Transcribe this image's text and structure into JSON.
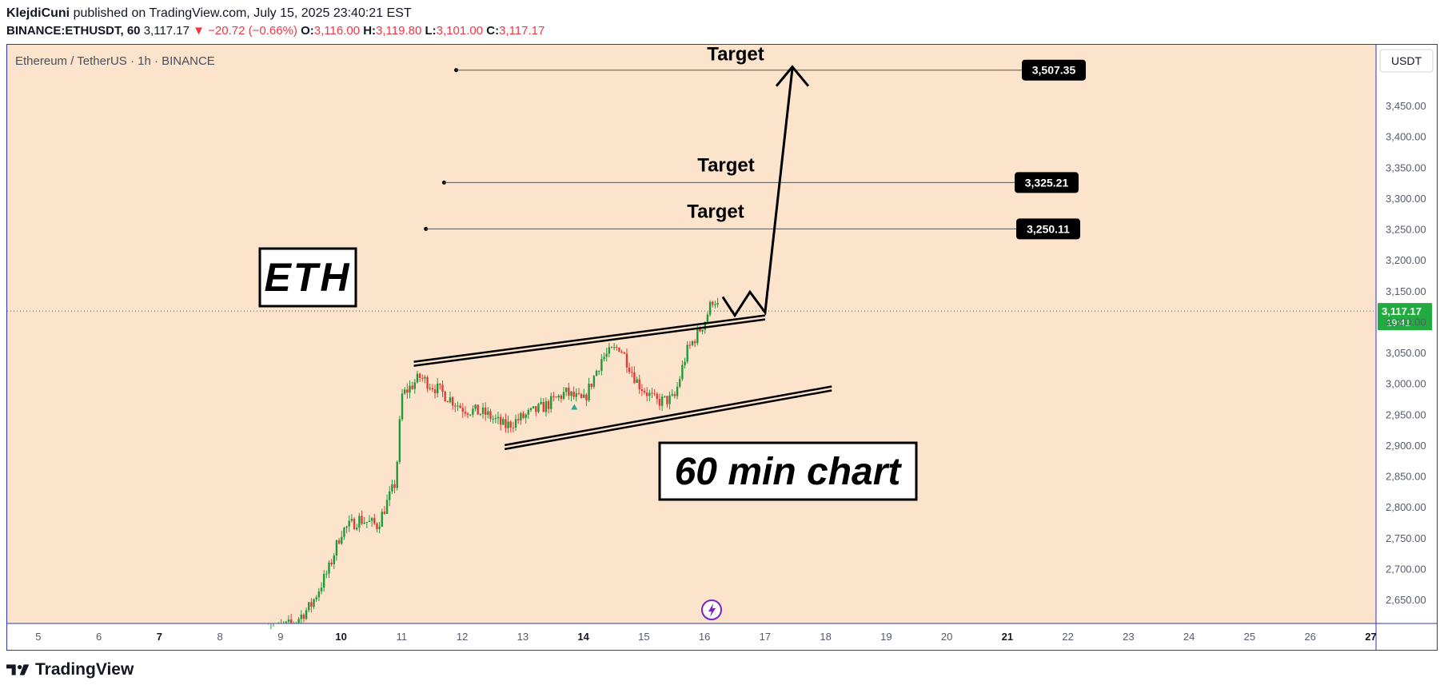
{
  "header": {
    "author": "KlejdiCuni",
    "published_text": "published on TradingView.com, July 15, 2025 23:40:21 EST",
    "symbol": "BINANCE:ETHUSDT, 60",
    "last": "3,117.17",
    "change": "▼ −20.72 (−0.66%)",
    "o_label": "O:",
    "o": "3,116.00",
    "h_label": "H:",
    "h": "3,119.80",
    "l_label": "L:",
    "l": "3,101.00",
    "c_label": "C:",
    "c": "3,117.17"
  },
  "pane": {
    "title": "Ethereum / TetherUS · 1h · BINANCE",
    "currency": "USDT",
    "background": "#fbe3cc",
    "border": "#2b35c8"
  },
  "annotations": {
    "eth_label": "ETH",
    "timeframe_label": "60 min chart",
    "target_text": "Target",
    "targets": [
      {
        "price": 3507.35,
        "label": "3,507.35",
        "text": "Target"
      },
      {
        "price": 3325.21,
        "label": "3,325.21",
        "text": "Target"
      },
      {
        "price": 3250.11,
        "label": "3,250.11",
        "text": "Target"
      }
    ],
    "last_price": {
      "label": "3,117.17",
      "countdown": "19:41",
      "color": "#22ab3f"
    }
  },
  "footer": {
    "brand": "TradingView"
  },
  "colors": {
    "up": "#26a69a",
    "up_body": "#1f9a3a",
    "down": "#e53935",
    "axis_text": "#555b6b"
  },
  "chart_data": {
    "type": "candlestick",
    "title": "Ethereum / TetherUS · 1h · BINANCE",
    "x_ticks": [
      "5",
      "6",
      "7",
      "8",
      "9",
      "10",
      "11",
      "12",
      "13",
      "14",
      "15",
      "16",
      "17",
      "18",
      "19",
      "20",
      "21",
      "22",
      "23",
      "24",
      "25",
      "26",
      "27"
    ],
    "x_ticks_bold": [
      "7",
      "10",
      "14",
      "21",
      "27"
    ],
    "y_ticks": [
      "3,450.00",
      "3,400.00",
      "3,350.00",
      "3,300.00",
      "3,250.00",
      "3,200.00",
      "3,150.00",
      "3,100.00",
      "3,050.00",
      "3,000.00",
      "2,950.00",
      "2,900.00",
      "2,850.00",
      "2,800.00",
      "2,750.00",
      "2,700.00",
      "2,650.00"
    ],
    "ylim": [
      2620,
      3520
    ],
    "xlim_days": [
      4.5,
      27.1
    ],
    "series_points": [
      {
        "day": 8.8,
        "price": 2600
      },
      {
        "day": 9.2,
        "price": 2610
      },
      {
        "day": 9.5,
        "price": 2640
      },
      {
        "day": 9.8,
        "price": 2700
      },
      {
        "day": 10.0,
        "price": 2760
      },
      {
        "day": 10.3,
        "price": 2780
      },
      {
        "day": 10.6,
        "price": 2770
      },
      {
        "day": 10.9,
        "price": 2840
      },
      {
        "day": 11.0,
        "price": 2980
      },
      {
        "day": 11.3,
        "price": 3010
      },
      {
        "day": 11.6,
        "price": 2990
      },
      {
        "day": 12.0,
        "price": 2960
      },
      {
        "day": 12.4,
        "price": 2950
      },
      {
        "day": 12.7,
        "price": 2930
      },
      {
        "day": 13.0,
        "price": 2945
      },
      {
        "day": 13.4,
        "price": 2965
      },
      {
        "day": 13.7,
        "price": 2985
      },
      {
        "day": 14.0,
        "price": 2970
      },
      {
        "day": 14.3,
        "price": 3040
      },
      {
        "day": 14.6,
        "price": 3060
      },
      {
        "day": 14.9,
        "price": 3000
      },
      {
        "day": 15.2,
        "price": 2970
      },
      {
        "day": 15.5,
        "price": 2975
      },
      {
        "day": 15.7,
        "price": 3050
      },
      {
        "day": 16.0,
        "price": 3100
      },
      {
        "day": 16.15,
        "price": 3140
      },
      {
        "day": 16.25,
        "price": 3117.17
      }
    ],
    "channel_upper": [
      {
        "day": 11.2,
        "price": 3035
      },
      {
        "day": 17.0,
        "price": 3110
      }
    ],
    "channel_lower": [
      {
        "day": 12.7,
        "price": 2900
      },
      {
        "day": 18.1,
        "price": 2995
      }
    ],
    "projection": [
      {
        "day": 16.3,
        "price": 3140
      },
      {
        "day": 16.5,
        "price": 3110
      },
      {
        "day": 16.75,
        "price": 3148
      },
      {
        "day": 17.0,
        "price": 3115
      },
      {
        "day": 17.45,
        "price": 3510
      }
    ],
    "target_lines": [
      {
        "price": 3507.35,
        "day_start": 11.9
      },
      {
        "price": 3325.21,
        "day_start": 11.7
      },
      {
        "price": 3250.11,
        "day_start": 11.4
      }
    ]
  }
}
